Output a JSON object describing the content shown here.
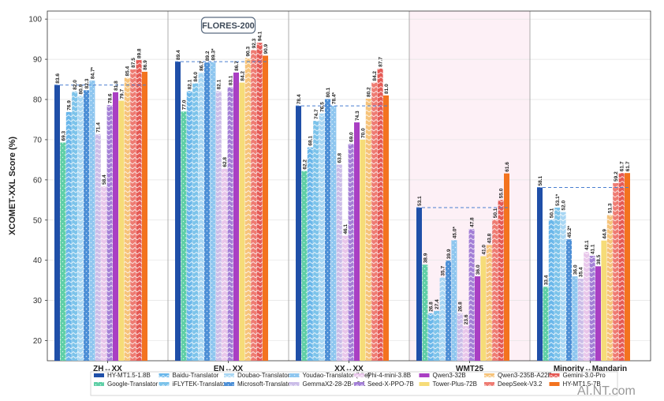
{
  "chart_data": {
    "type": "bar",
    "ylabel": "XCOMET-XXL Score (%)",
    "ylim": [
      15,
      102
    ],
    "yticks": [
      20,
      30,
      40,
      50,
      60,
      70,
      80,
      90,
      100
    ],
    "grid": true,
    "legend_position": "bottom",
    "annotation": "FLORES-200",
    "highlight_group": "WMT25",
    "categories": [
      "ZH↔XX",
      "EN↔XX",
      "XX↔XX",
      "WMT25",
      "Minority↔Mandarin"
    ],
    "series": [
      {
        "name": "HY-MT1.5-1.8B",
        "color": "#1f4fa8",
        "pattern": "solid",
        "values": [
          83.6,
          89.4,
          78.4,
          53.1,
          58.1
        ],
        "labels": [
          "83.6",
          "89.4",
          "78.4",
          "53.1",
          "58.1"
        ]
      },
      {
        "name": "Google-Translator",
        "color": "#5fcfa6",
        "pattern": "dots",
        "values": [
          69.3,
          77.0,
          62.2,
          38.9,
          33.4
        ],
        "labels": [
          "69.3",
          "77.0",
          "62.2",
          "38.9",
          "33.4"
        ]
      },
      {
        "name": "Baidu-Translator",
        "color": "#6ab7ea",
        "pattern": "chevron",
        "values": [
          76.9,
          82.1,
          68.1,
          26.8,
          50.1
        ],
        "labels": [
          "76.9",
          "82.1",
          "68.1",
          "26.8",
          "50.1"
        ]
      },
      {
        "name": "iFLYTEK-Translator",
        "color": "#7cc3ea",
        "pattern": "chevron",
        "values": [
          82.0,
          84.0,
          74.7,
          27.4,
          53.1
        ],
        "labels": [
          "82.0",
          "84.0",
          "74.7",
          "27.4",
          "53.1*"
        ]
      },
      {
        "name": "Doubao-Translator",
        "color": "#a8d6f3",
        "pattern": "chevron",
        "values": [
          80.9,
          86.7,
          76.5,
          35.7,
          52.0
        ],
        "labels": [
          "80.9",
          "86.7",
          "76.5",
          "35.7",
          "52.0"
        ]
      },
      {
        "name": "Microsoft-Translator",
        "color": "#4d8fd6",
        "pattern": "dots",
        "values": [
          82.3,
          89.2,
          80.1,
          39.9,
          45.2
        ],
        "labels": [
          "82.3",
          "89.2",
          "80.1",
          "39.9",
          "45.2*"
        ]
      },
      {
        "name": "Youdao-Translator (Lite)",
        "color": "#8ec6ef",
        "pattern": "dots",
        "values": [
          84.7,
          89.3,
          78.4,
          45.0,
          36.0
        ],
        "labels": [
          "84.7*",
          "89.3*",
          "78.4*",
          "45.0*",
          "36.0"
        ]
      },
      {
        "name": "GemmaX2-28-2B-v0.1",
        "color": "#cbbde8",
        "pattern": "chevron",
        "values": [
          71.4,
          82.1,
          63.8,
          26.8,
          35.4
        ],
        "labels": [
          "71.4",
          "82.1",
          "63.8",
          "26.8",
          "35.4"
        ]
      },
      {
        "name": "Phi-4-mini-3.8B",
        "color": "#e8c6ea",
        "pattern": "chevron",
        "values": [
          58.4,
          62.8,
          46.1,
          23.6,
          42.1
        ],
        "labels": [
          "58.4",
          "62.8",
          "46.1",
          "23.6",
          "42.1"
        ]
      },
      {
        "name": "Seed-X-PPO-7B",
        "color": "#a37fd6",
        "pattern": "chevron",
        "values": [
          78.6,
          83.1,
          69.0,
          47.8,
          41.1
        ],
        "labels": [
          "78.6",
          "83.1",
          "69.0",
          "47.8",
          "41.1"
        ]
      },
      {
        "name": "Qwen3-32B",
        "color": "#a93fc3",
        "pattern": "solid",
        "values": [
          81.8,
          86.7,
          74.3,
          36.0,
          38.5
        ],
        "labels": [
          "81.8",
          "86.7",
          "74.3",
          "36.0",
          "38.5"
        ]
      },
      {
        "name": "Tower-Plus-72B",
        "color": "#f6dc78",
        "pattern": "solid",
        "values": [
          79.7,
          84.2,
          70.0,
          41.0,
          44.9
        ],
        "labels": [
          "79.7",
          "84.2",
          "70.0",
          "41.0",
          "44.9"
        ]
      },
      {
        "name": "Qwen3-235B-A22B",
        "color": "#f6c37a",
        "pattern": "chevron",
        "values": [
          85.4,
          90.3,
          80.2,
          43.8,
          51.3
        ],
        "labels": [
          "85.4",
          "90.3",
          "80.2",
          "43.8",
          "51.3"
        ]
      },
      {
        "name": "DeepSeek-V3.2",
        "color": "#ee7b72",
        "pattern": "chevron",
        "values": [
          87.5,
          92.3,
          84.2,
          50.1,
          59.2
        ],
        "labels": [
          "87.5",
          "92.3",
          "84.2",
          "50.1",
          "59.2"
        ]
      },
      {
        "name": "Gemini-3.0-Pro",
        "color": "#e55a55",
        "pattern": "chevron",
        "values": [
          89.8,
          94.1,
          87.7,
          55.0,
          61.7
        ],
        "labels": [
          "89.8",
          "94.1",
          "87.7",
          "55.0",
          "61.7"
        ]
      },
      {
        "name": "HY-MT1.5-7B",
        "color": "#f3731f",
        "pattern": "solid",
        "values": [
          86.9,
          90.9,
          81.0,
          61.6,
          61.7
        ],
        "labels": [
          "86.9",
          "90.9",
          "81.0",
          "61.6",
          "61.7"
        ]
      }
    ]
  },
  "watermark": "AI.NT.com"
}
